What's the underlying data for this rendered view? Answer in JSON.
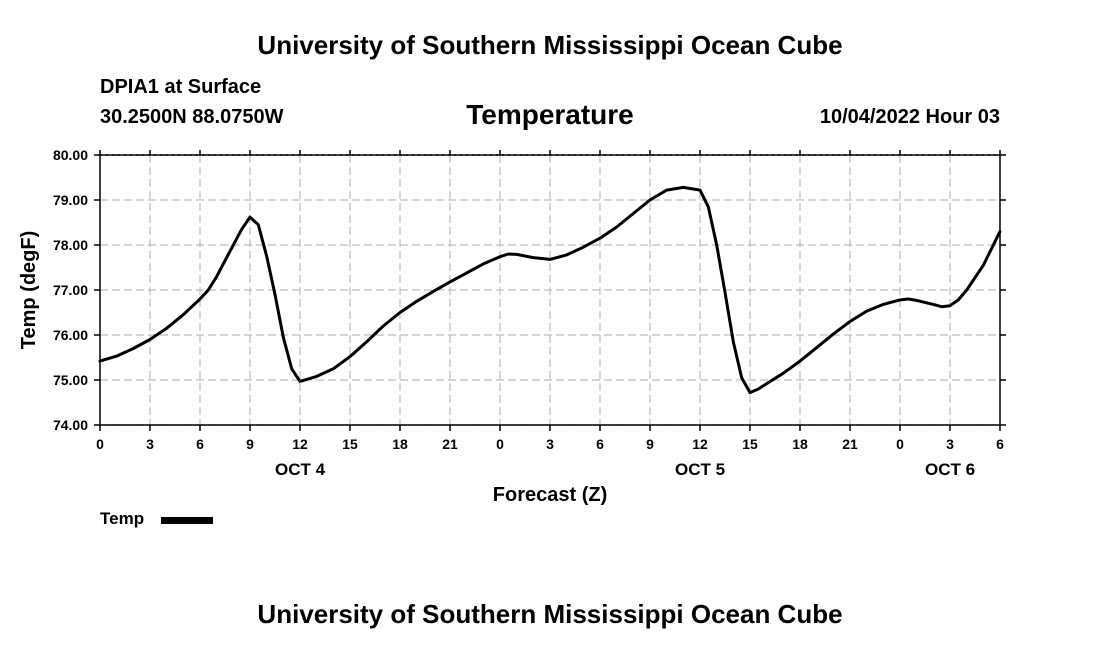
{
  "header": {
    "title": "University of Southern Mississippi Ocean Cube",
    "station": "DPIA1 at Surface",
    "coords": "30.2500N  88.0750W",
    "datetime": "10/04/2022 Hour 03"
  },
  "footer": {
    "title": "University of Southern Mississippi Ocean Cube"
  },
  "chart_data": {
    "type": "line",
    "title": "Temperature",
    "xlabel": "Forecast (Z)",
    "ylabel": "Temp (degF)",
    "ylim": [
      74,
      80
    ],
    "xlim": [
      0,
      54
    ],
    "grid": true,
    "line_color": "#000000",
    "y_ticks": [
      "74.00",
      "75.00",
      "76.00",
      "77.00",
      "78.00",
      "79.00",
      "80.00"
    ],
    "x_ticks": [
      {
        "t": 0,
        "label": "0"
      },
      {
        "t": 3,
        "label": "3"
      },
      {
        "t": 6,
        "label": "6"
      },
      {
        "t": 9,
        "label": "9"
      },
      {
        "t": 12,
        "label": "12"
      },
      {
        "t": 15,
        "label": "15"
      },
      {
        "t": 18,
        "label": "18"
      },
      {
        "t": 21,
        "label": "21"
      },
      {
        "t": 24,
        "label": "0"
      },
      {
        "t": 27,
        "label": "3"
      },
      {
        "t": 30,
        "label": "6"
      },
      {
        "t": 33,
        "label": "9"
      },
      {
        "t": 36,
        "label": "12"
      },
      {
        "t": 39,
        "label": "15"
      },
      {
        "t": 42,
        "label": "18"
      },
      {
        "t": 45,
        "label": "21"
      },
      {
        "t": 48,
        "label": "0"
      },
      {
        "t": 51,
        "label": "3"
      },
      {
        "t": 54,
        "label": "6"
      }
    ],
    "date_labels": [
      {
        "t": 12,
        "label": "OCT 4"
      },
      {
        "t": 36,
        "label": "OCT 5"
      },
      {
        "t": 51,
        "label": "OCT 6"
      }
    ],
    "legend": [
      {
        "name": "Temp"
      }
    ],
    "series": [
      {
        "name": "Temp",
        "x": [
          0,
          1,
          2,
          3,
          4,
          5,
          6,
          6.5,
          7,
          7.5,
          8,
          8.5,
          9,
          9.5,
          10,
          10.5,
          11,
          11.5,
          12,
          13,
          14,
          15,
          16,
          17,
          18,
          19,
          20,
          21,
          22,
          23,
          24,
          24.5,
          25,
          26,
          27,
          28,
          29,
          30,
          31,
          32,
          33,
          34,
          35,
          36,
          36.5,
          37,
          37.5,
          38,
          38.5,
          39,
          39.5,
          40,
          41,
          42,
          43,
          44,
          45,
          46,
          47,
          48,
          48.5,
          49,
          50,
          50.5,
          51,
          51.5,
          52,
          53,
          54
        ],
        "values": [
          75.42,
          75.53,
          75.7,
          75.9,
          76.15,
          76.45,
          76.8,
          77.0,
          77.3,
          77.65,
          78.0,
          78.35,
          78.62,
          78.45,
          77.75,
          76.9,
          75.95,
          75.25,
          74.97,
          75.08,
          75.25,
          75.52,
          75.85,
          76.2,
          76.5,
          76.75,
          76.97,
          77.18,
          77.38,
          77.58,
          77.74,
          77.8,
          77.79,
          77.72,
          77.68,
          77.78,
          77.95,
          78.15,
          78.4,
          78.7,
          79.0,
          79.22,
          79.28,
          79.22,
          78.85,
          78.0,
          76.95,
          75.85,
          75.05,
          74.72,
          74.8,
          74.92,
          75.15,
          75.42,
          75.72,
          76.02,
          76.3,
          76.53,
          76.68,
          76.78,
          76.8,
          76.77,
          76.68,
          76.63,
          76.65,
          76.78,
          77.0,
          77.55,
          78.3
        ]
      }
    ]
  }
}
